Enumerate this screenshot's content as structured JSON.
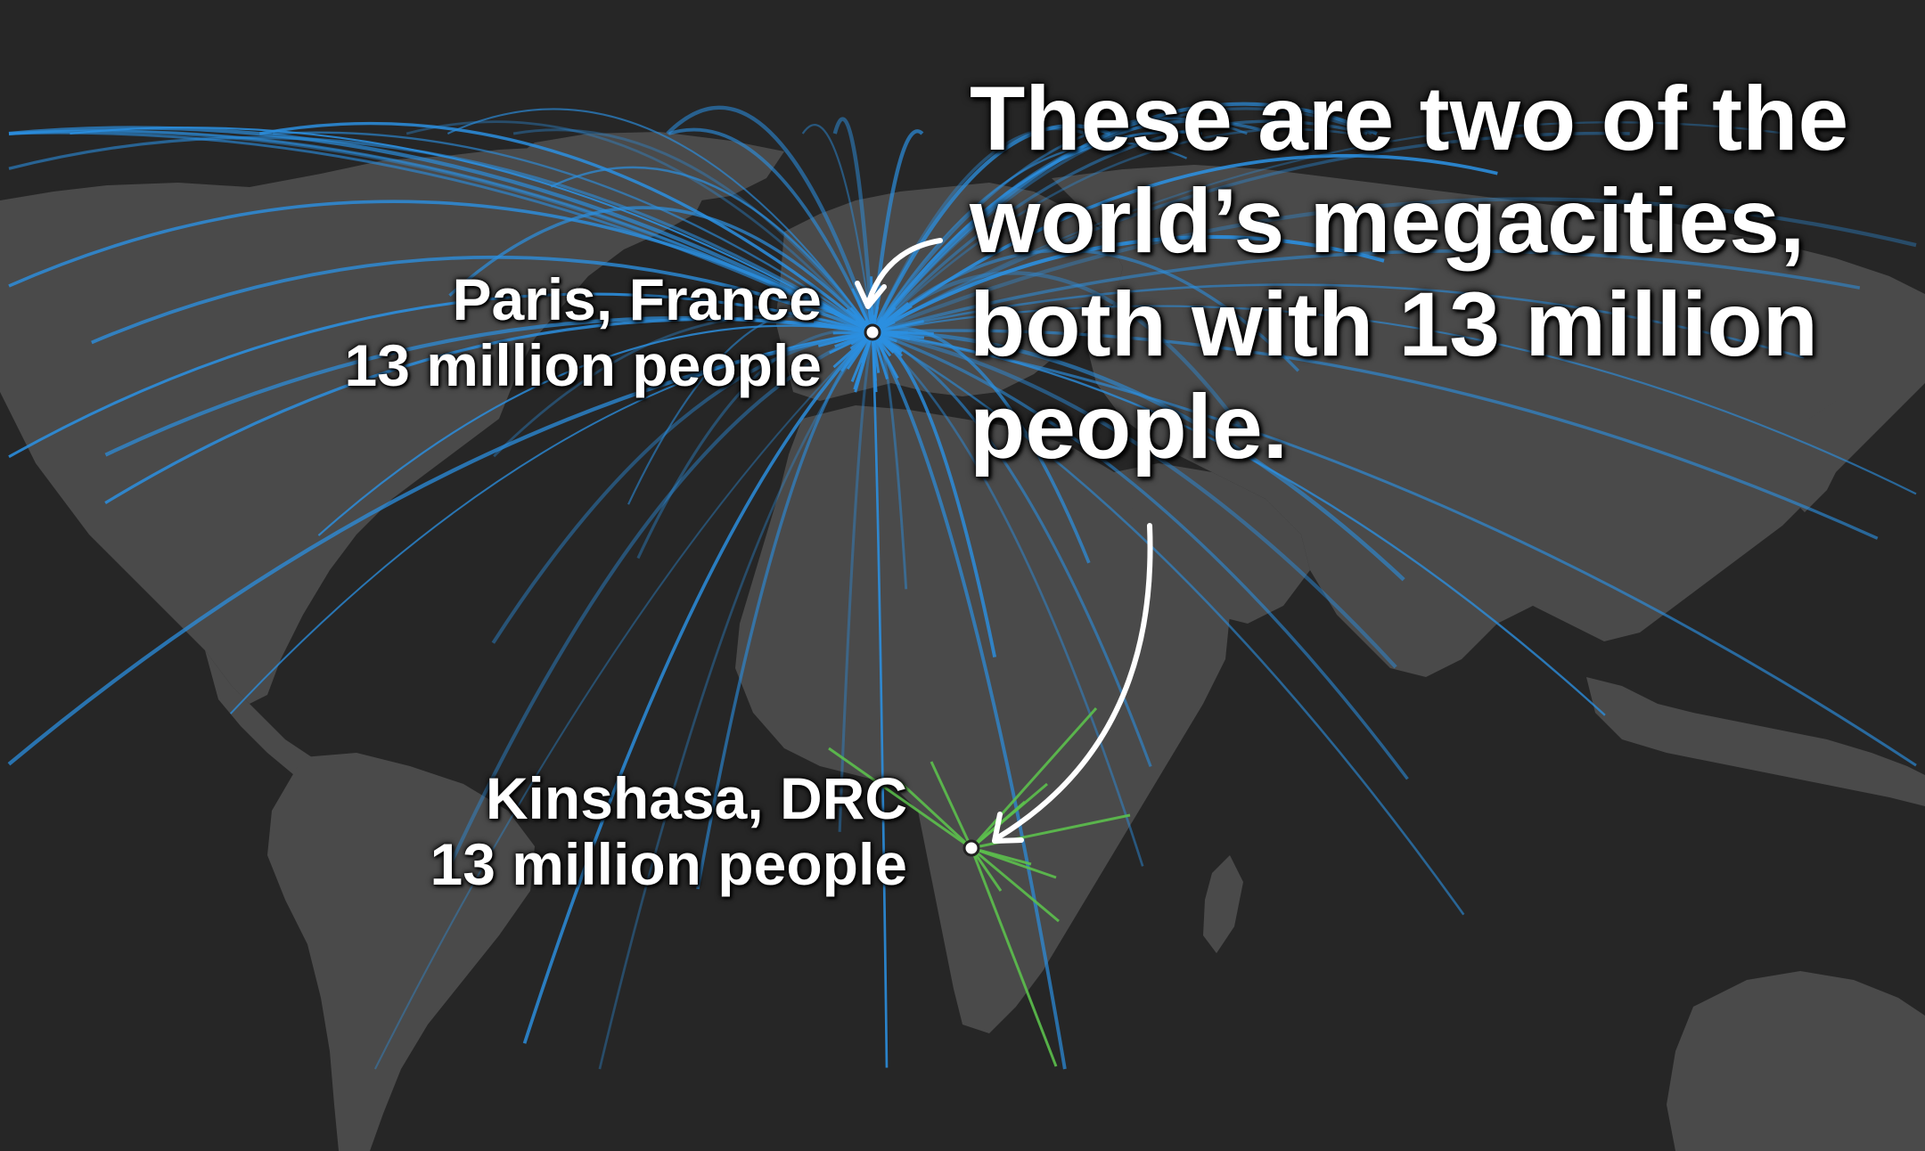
{
  "headline": {
    "lines": [
      "These are two of the",
      "world’s megacities,",
      "both with 13 million",
      "people."
    ]
  },
  "cities": {
    "paris": {
      "name": "Paris, France",
      "population": "13 million people"
    },
    "kinshasa": {
      "name": "Kinshasa, DRC",
      "population": "13 million people"
    }
  },
  "colors": {
    "background": "#262626",
    "land": "#4a4a4a",
    "paris_connections": "#2b8fe0",
    "kinshasa_connections": "#5cc04d",
    "city_marker": "#ffffff",
    "text": "#ffffff"
  }
}
